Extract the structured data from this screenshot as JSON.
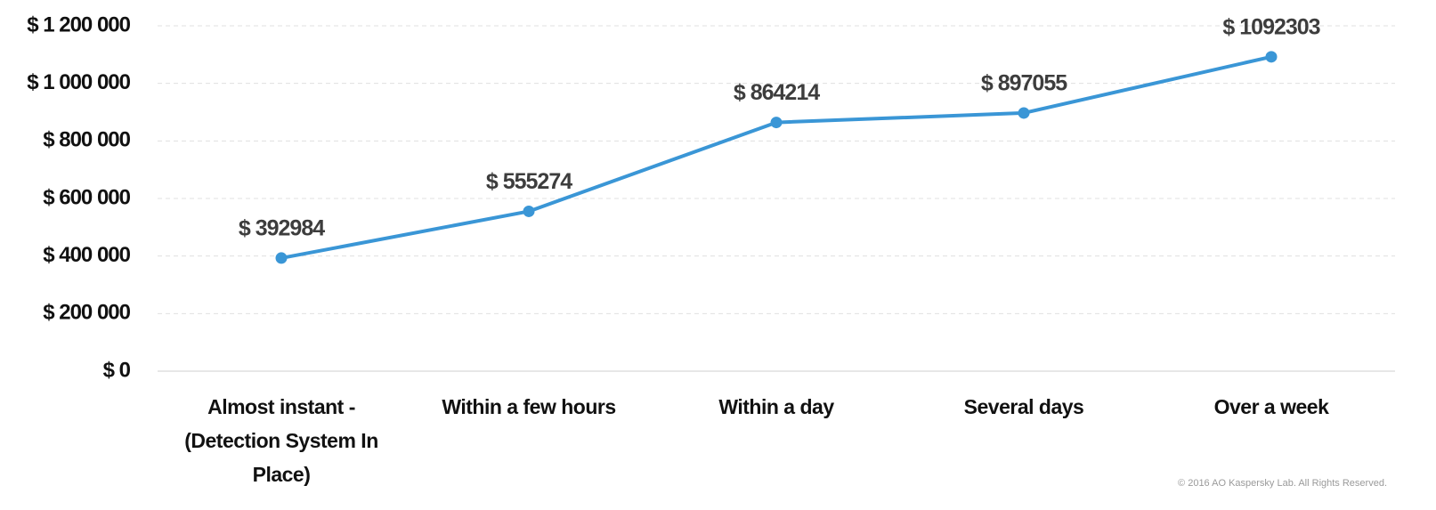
{
  "chart_data": {
    "type": "line",
    "categories": [
      "Almost instant - (Detection System In Place)",
      "Within a few hours",
      "Within a day",
      "Several days",
      "Over a week"
    ],
    "values": [
      392984,
      555274,
      864214,
      897055,
      1092303
    ],
    "value_labels": [
      "$ 392984",
      "$ 555274",
      "$ 864214",
      "$ 897055",
      "$ 1092303"
    ],
    "color": "#3a96d6",
    "ylim": [
      0,
      1200000
    ],
    "yticks": [
      {
        "value": 0,
        "label": "$ 0"
      },
      {
        "value": 200000,
        "label": "$ 200 000"
      },
      {
        "value": 400000,
        "label": "$ 400 000"
      },
      {
        "value": 600000,
        "label": "$ 600 000"
      },
      {
        "value": 800000,
        "label": "$ 800 000"
      },
      {
        "value": 1000000,
        "label": "$ 1 000 000"
      },
      {
        "value": 1200000,
        "label": "$ 1 200 000"
      }
    ],
    "grid": true,
    "credit": "© 2016 AO Kaspersky Lab. All Rights Reserved."
  }
}
